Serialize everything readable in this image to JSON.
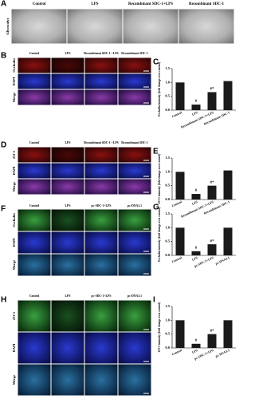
{
  "figure": {
    "panel_a": {
      "letter": "A",
      "row_labels": [
        "Glycocalyx"
      ],
      "columns": [
        "Control",
        "LPS",
        "Recombinant SDC-1+LPS",
        "Recombinant SDC-1"
      ]
    },
    "panel_b": {
      "letter": "B",
      "row_labels": [
        "Occludin",
        "DAPI",
        "Merge"
      ],
      "columns": [
        "Control",
        "LPS",
        "Recombinant SDC-1 +LPS",
        "Recombinant SDC-1"
      ]
    },
    "panel_d": {
      "letter": "D",
      "row_labels": [
        "ZO-1",
        "DAPI",
        "Merge"
      ],
      "columns": [
        "Control",
        "LPS",
        "Recombinant SDC-1 +LPS",
        "Recombinant SDC-1"
      ]
    },
    "panel_f": {
      "letter": "F",
      "row_labels": [
        "Occludin",
        "DAPI",
        "Merge"
      ],
      "columns": [
        "Control",
        "LPS",
        "pc-SDC-1+LPS",
        "pc-DNA3.1"
      ]
    },
    "panel_h": {
      "letter": "H",
      "row_labels": [
        "ZO-1",
        "DAPI",
        "Merge"
      ],
      "columns": [
        "Control",
        "LPS",
        "pc-SDC-1+LPS",
        "pc-DNA3.1"
      ]
    }
  },
  "chart_data": [
    {
      "type": "bar",
      "panel": "C",
      "y_label": "Occludin intensity (fold change over control)",
      "categories": [
        "Control",
        "LPS",
        "Recombinant SDC-1+LPS",
        "Recombinant SDC-1"
      ],
      "values": [
        1.0,
        0.2,
        0.65,
        1.05
      ],
      "color": "#1a1a1a",
      "annotations": [
        {
          "bar": 1,
          "text": "#"
        },
        {
          "bar": 2,
          "text": "#*"
        }
      ],
      "ylim": [
        0,
        1.5
      ],
      "yticks": [
        {
          "value": 0,
          "label": "0.0"
        },
        {
          "value": 0.5,
          "label": "0.5"
        },
        {
          "value": 1,
          "label": "1.0"
        },
        {
          "value": 1.5,
          "label": "1.5"
        }
      ]
    },
    {
      "type": "bar",
      "panel": "E",
      "y_label": "ZO-1 intensity (fold change over control)",
      "categories": [
        "Control",
        "LPS",
        "Recombinant SDC-1+LPS",
        "Recombinant SDC-1"
      ],
      "values": [
        1.0,
        0.2,
        0.5,
        1.05
      ],
      "color": "#1a1a1a",
      "annotations": [
        {
          "bar": 1,
          "text": "#"
        },
        {
          "bar": 2,
          "text": "#*"
        }
      ],
      "ylim": [
        0,
        1.5
      ],
      "yticks": [
        {
          "value": 0,
          "label": "0.0"
        },
        {
          "value": 0.5,
          "label": "0.5"
        },
        {
          "value": 1,
          "label": "1.0"
        },
        {
          "value": 1.5,
          "label": "1.5"
        }
      ]
    },
    {
      "type": "bar",
      "panel": "G",
      "y_label": "Occludin intensity (fold change over control)",
      "categories": [
        "Control",
        "LPS",
        "pc-SDC-1+LPS",
        "pc-DNA3.1"
      ],
      "values": [
        1.0,
        0.15,
        0.4,
        1.0
      ],
      "color": "#1a1a1a",
      "annotations": [
        {
          "bar": 1,
          "text": "#"
        },
        {
          "bar": 2,
          "text": "#*"
        }
      ],
      "ylim": [
        0,
        1.5
      ],
      "yticks": [
        {
          "value": 0,
          "label": "0.0"
        },
        {
          "value": 0.5,
          "label": "0.5"
        },
        {
          "value": 1,
          "label": "1.0"
        },
        {
          "value": 1.5,
          "label": "1.5"
        }
      ]
    },
    {
      "type": "bar",
      "panel": "I",
      "y_label": "ZO-1 intensity (fold change over control)",
      "categories": [
        "Control",
        "LPS",
        "pc-SDC-1+LPS",
        "pc-DNA3.1"
      ],
      "values": [
        1.0,
        0.15,
        0.5,
        1.0
      ],
      "color": "#1a1a1a",
      "annotations": [
        {
          "bar": 1,
          "text": "#"
        },
        {
          "bar": 2,
          "text": "#*"
        }
      ],
      "ylim": [
        0,
        1.5
      ],
      "yticks": [
        {
          "value": 0,
          "label": "0.0"
        },
        {
          "value": 0.5,
          "label": "0.5"
        },
        {
          "value": 1,
          "label": "1.0"
        },
        {
          "value": 1.5,
          "label": "1.5"
        }
      ]
    }
  ]
}
